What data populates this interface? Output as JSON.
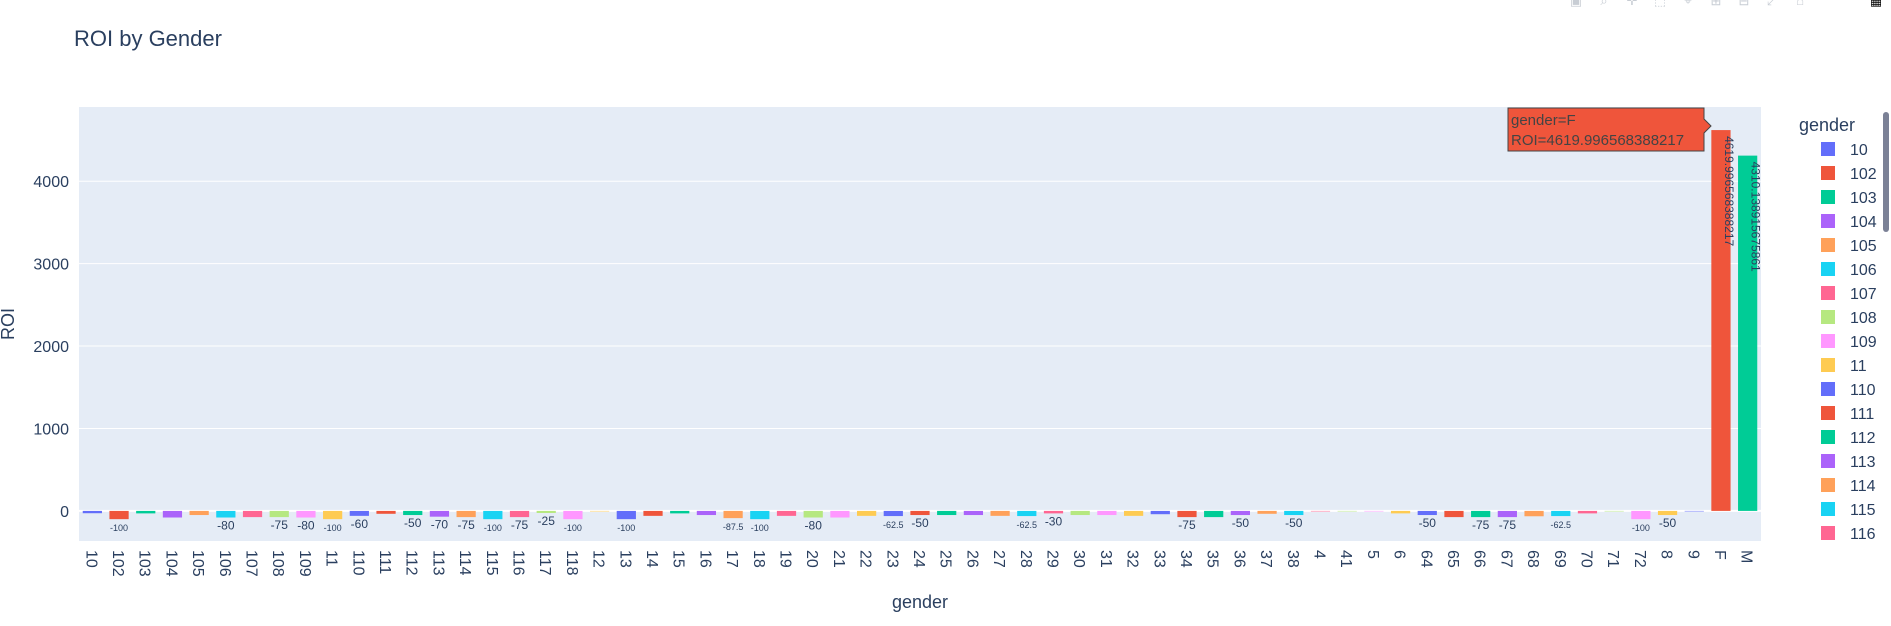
{
  "modebar": {
    "icons": [
      "camera-icon",
      "zoom-icon",
      "pan-icon",
      "box-select-icon",
      "lasso-icon",
      "zoom-in-icon",
      "zoom-out-icon",
      "autoscale-icon",
      "reset-axes-icon",
      "plotly-logo-icon"
    ]
  },
  "tooltip": {
    "line1": "gender=F",
    "line2": "ROI=4619.996568388217",
    "color": "#EF553B"
  },
  "chart_data": {
    "type": "bar",
    "title": "ROI by Gender",
    "xlabel": "gender",
    "ylabel": "ROI",
    "ylim": [
      -365,
      4900
    ],
    "yticks": [
      0,
      1000,
      2000,
      3000,
      4000
    ],
    "ytick_labels": [
      "0",
      "1000",
      "2000",
      "3000",
      "4000"
    ],
    "grid": true,
    "legend_title": "gender",
    "legend_position": "right",
    "palette": [
      "#636EFA",
      "#EF553B",
      "#00CC96",
      "#AB63FA",
      "#FFA15A",
      "#19D3F3",
      "#FF6692",
      "#B6E880",
      "#FF97FF",
      "#FECB52"
    ],
    "categories": [
      "10",
      "102",
      "103",
      "104",
      "105",
      "106",
      "107",
      "108",
      "109",
      "11",
      "110",
      "111",
      "112",
      "113",
      "114",
      "115",
      "116",
      "117",
      "118",
      "12",
      "13",
      "14",
      "15",
      "16",
      "17",
      "18",
      "19",
      "20",
      "21",
      "22",
      "23",
      "24",
      "25",
      "26",
      "27",
      "28",
      "29",
      "30",
      "31",
      "32",
      "33",
      "34",
      "35",
      "36",
      "37",
      "38",
      "4",
      "41",
      "5",
      "6",
      "64",
      "65",
      "66",
      "67",
      "68",
      "69",
      "70",
      "71",
      "72",
      "8",
      "9",
      "F",
      "M"
    ],
    "values": [
      -28,
      -100,
      -30,
      -80,
      -50,
      -80,
      -75,
      -75,
      -80,
      -100,
      -60,
      -35,
      -50,
      -70,
      -75,
      -100,
      -75,
      -25,
      -100,
      0,
      -100,
      -60,
      -30,
      -50,
      -87.5,
      -100,
      -60,
      -80,
      -80,
      -60,
      -62.5,
      -50,
      -50,
      -50,
      -60,
      -62.5,
      -30,
      -50,
      -50,
      -60,
      -40,
      -75,
      -75,
      -50,
      -35,
      -50,
      0,
      0,
      0,
      -30,
      -50,
      -75,
      -75,
      -75,
      -65,
      -62.5,
      -30,
      0,
      -100,
      -50,
      0,
      4619.996568388217,
      4310.138915675861
    ],
    "bar_labels": [
      "",
      "-100",
      "",
      "",
      "",
      "-80",
      "",
      "-75",
      "-80",
      "-100",
      "-60",
      "",
      "-50",
      "-70",
      "-75",
      "-100",
      "-75",
      "-25",
      "-100",
      "",
      "-100",
      "",
      "",
      "",
      "-87.5",
      "-100",
      "",
      "-80",
      "",
      "",
      "-62.5",
      "-50",
      "",
      "",
      "",
      "-62.5",
      "-30",
      "",
      "",
      "",
      "",
      "-75",
      "",
      "-50",
      "",
      "-50",
      "",
      "",
      "",
      "",
      "-50",
      "",
      "-75",
      "-75",
      "",
      "-62.5",
      "",
      "",
      "-100",
      "-50",
      "",
      "4619.996568388217",
      "4310.138915675861"
    ],
    "legend_entries": [
      "10",
      "102",
      "103",
      "104",
      "105",
      "106",
      "107",
      "108",
      "109",
      "11",
      "110",
      "111",
      "112",
      "113",
      "114",
      "115",
      "116"
    ]
  }
}
